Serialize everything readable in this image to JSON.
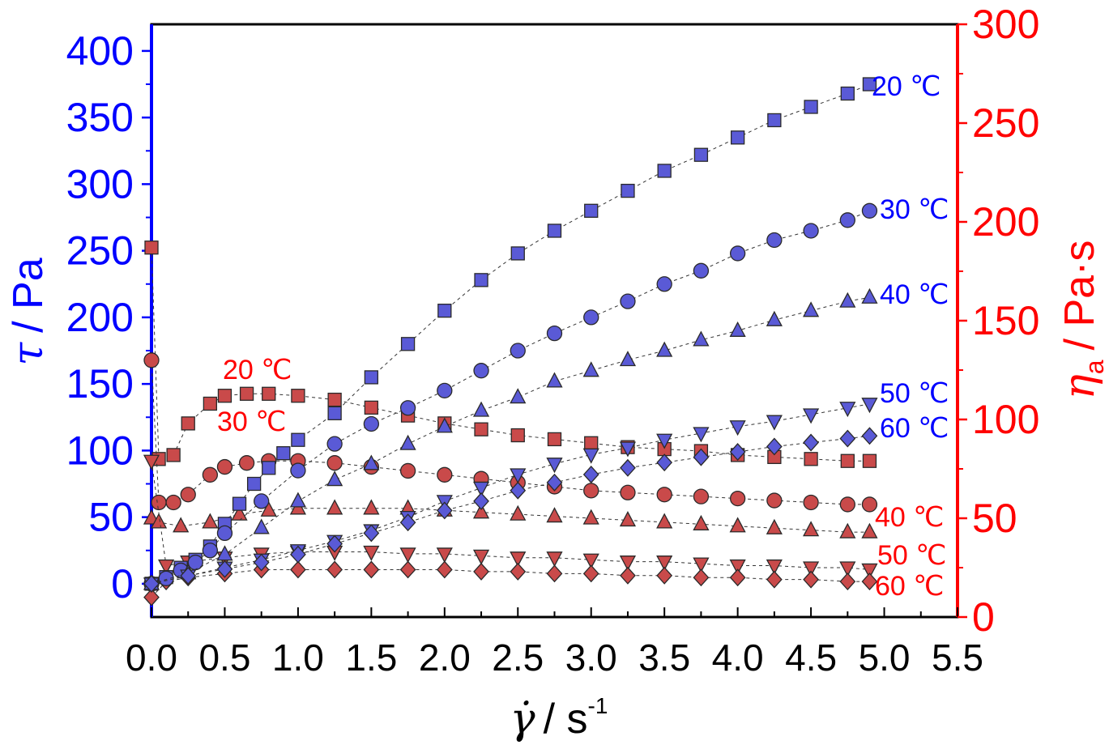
{
  "chart_data": {
    "type": "scatter",
    "x_axis": {
      "label_symbol": "γ̇",
      "label_unit": "/ s",
      "label_exp": "-1",
      "range": [
        0,
        5.5
      ],
      "ticks": [
        "0.0",
        "0.5",
        "1.0",
        "1.5",
        "2.0",
        "2.5",
        "3.0",
        "3.5",
        "4.0",
        "4.5",
        "5.0",
        "5.5"
      ]
    },
    "y_left": {
      "label_symbol": "τ",
      "label_unit": "/ Pa",
      "range": [
        -25,
        420
      ],
      "ticks": [
        "0",
        "50",
        "100",
        "150",
        "200",
        "250",
        "300",
        "350",
        "400"
      ],
      "color": "#0000ff"
    },
    "y_right": {
      "label_symbol": "η",
      "label_sub": "a",
      "label_unit": "/ Pa·s",
      "range": [
        0,
        300
      ],
      "ticks": [
        "0",
        "50",
        "100",
        "150",
        "200",
        "250",
        "300"
      ],
      "color": "#ff0000"
    },
    "colors": {
      "blue_fill": "#5a5ad6",
      "red_fill": "#c94a4a",
      "stroke": "#2a2a2a"
    },
    "shear_stress_series": [
      {
        "name": "20 ℃",
        "marker": "square",
        "points": [
          [
            0,
            0
          ],
          [
            0.1,
            5
          ],
          [
            0.2,
            12
          ],
          [
            0.3,
            18
          ],
          [
            0.4,
            28
          ],
          [
            0.5,
            45
          ],
          [
            0.6,
            60
          ],
          [
            0.7,
            75
          ],
          [
            0.8,
            87
          ],
          [
            0.9,
            98
          ],
          [
            1.0,
            108
          ],
          [
            1.25,
            128
          ],
          [
            1.5,
            155
          ],
          [
            1.75,
            180
          ],
          [
            2.0,
            205
          ],
          [
            2.25,
            228
          ],
          [
            2.5,
            248
          ],
          [
            2.75,
            265
          ],
          [
            3.0,
            280
          ],
          [
            3.25,
            295
          ],
          [
            3.5,
            310
          ],
          [
            3.75,
            322
          ],
          [
            4.0,
            335
          ],
          [
            4.25,
            348
          ],
          [
            4.5,
            358
          ],
          [
            4.75,
            368
          ],
          [
            4.9,
            375
          ]
        ]
      },
      {
        "name": "30 ℃",
        "marker": "circle",
        "points": [
          [
            0,
            0
          ],
          [
            0.1,
            4
          ],
          [
            0.2,
            10
          ],
          [
            0.3,
            16
          ],
          [
            0.4,
            25
          ],
          [
            0.5,
            38
          ],
          [
            0.75,
            62
          ],
          [
            1.0,
            85
          ],
          [
            1.25,
            105
          ],
          [
            1.5,
            120
          ],
          [
            1.75,
            132
          ],
          [
            2.0,
            145
          ],
          [
            2.25,
            160
          ],
          [
            2.5,
            175
          ],
          [
            2.75,
            188
          ],
          [
            3.0,
            200
          ],
          [
            3.25,
            212
          ],
          [
            3.5,
            225
          ],
          [
            3.75,
            235
          ],
          [
            4.0,
            248
          ],
          [
            4.25,
            258
          ],
          [
            4.5,
            265
          ],
          [
            4.75,
            273
          ],
          [
            4.9,
            280
          ]
        ]
      },
      {
        "name": "40 ℃",
        "marker": "triangle-up",
        "points": [
          [
            0,
            0
          ],
          [
            0.25,
            8
          ],
          [
            0.5,
            22
          ],
          [
            0.75,
            42
          ],
          [
            1.0,
            62
          ],
          [
            1.25,
            78
          ],
          [
            1.5,
            90
          ],
          [
            1.75,
            105
          ],
          [
            2.0,
            118
          ],
          [
            2.25,
            130
          ],
          [
            2.5,
            140
          ],
          [
            2.75,
            152
          ],
          [
            3.0,
            160
          ],
          [
            3.25,
            168
          ],
          [
            3.5,
            175
          ],
          [
            3.75,
            183
          ],
          [
            4.0,
            190
          ],
          [
            4.25,
            198
          ],
          [
            4.5,
            205
          ],
          [
            4.75,
            212
          ],
          [
            4.9,
            215
          ]
        ]
      },
      {
        "name": "50 ℃",
        "marker": "triangle-down",
        "points": [
          [
            0,
            0
          ],
          [
            0.25,
            6
          ],
          [
            0.5,
            12
          ],
          [
            0.75,
            18
          ],
          [
            1.0,
            25
          ],
          [
            1.25,
            32
          ],
          [
            1.5,
            40
          ],
          [
            1.75,
            50
          ],
          [
            2.0,
            62
          ],
          [
            2.25,
            72
          ],
          [
            2.5,
            82
          ],
          [
            2.75,
            90
          ],
          [
            3.0,
            97
          ],
          [
            3.25,
            102
          ],
          [
            3.5,
            108
          ],
          [
            3.75,
            113
          ],
          [
            4.0,
            118
          ],
          [
            4.25,
            122
          ],
          [
            4.5,
            127
          ],
          [
            4.75,
            132
          ],
          [
            4.9,
            135
          ]
        ]
      },
      {
        "name": "60 ℃",
        "marker": "diamond",
        "points": [
          [
            0,
            0
          ],
          [
            0.25,
            6
          ],
          [
            0.5,
            11
          ],
          [
            0.75,
            16
          ],
          [
            1.0,
            22
          ],
          [
            1.25,
            30
          ],
          [
            1.5,
            38
          ],
          [
            1.75,
            46
          ],
          [
            2.0,
            55
          ],
          [
            2.25,
            62
          ],
          [
            2.5,
            70
          ],
          [
            2.75,
            76
          ],
          [
            3.0,
            82
          ],
          [
            3.25,
            87
          ],
          [
            3.5,
            91
          ],
          [
            3.75,
            95
          ],
          [
            4.0,
            99
          ],
          [
            4.25,
            103
          ],
          [
            4.5,
            106
          ],
          [
            4.75,
            109
          ],
          [
            4.9,
            111
          ]
        ]
      }
    ],
    "viscosity_series": [
      {
        "name": "20 ℃",
        "marker": "square",
        "points": [
          [
            0,
            187
          ],
          [
            0.05,
            80
          ],
          [
            0.15,
            82
          ],
          [
            0.25,
            98
          ],
          [
            0.4,
            108
          ],
          [
            0.5,
            112
          ],
          [
            0.65,
            113
          ],
          [
            0.8,
            113
          ],
          [
            1.0,
            112
          ],
          [
            1.25,
            110
          ],
          [
            1.5,
            106
          ],
          [
            1.75,
            102
          ],
          [
            2.0,
            98
          ],
          [
            2.25,
            95
          ],
          [
            2.5,
            92
          ],
          [
            2.75,
            90
          ],
          [
            3.0,
            88
          ],
          [
            3.25,
            86
          ],
          [
            3.5,
            85
          ],
          [
            3.75,
            84
          ],
          [
            4.0,
            82
          ],
          [
            4.25,
            81
          ],
          [
            4.5,
            80
          ],
          [
            4.75,
            79
          ],
          [
            4.9,
            79
          ]
        ]
      },
      {
        "name": "30 ℃",
        "marker": "circle",
        "points": [
          [
            0,
            130
          ],
          [
            0.05,
            58
          ],
          [
            0.15,
            58
          ],
          [
            0.25,
            62
          ],
          [
            0.4,
            72
          ],
          [
            0.5,
            76
          ],
          [
            0.65,
            78
          ],
          [
            0.8,
            79
          ],
          [
            1.0,
            79
          ],
          [
            1.25,
            78
          ],
          [
            1.5,
            76
          ],
          [
            1.75,
            74
          ],
          [
            2.0,
            72
          ],
          [
            2.25,
            70
          ],
          [
            2.5,
            68
          ],
          [
            2.75,
            66
          ],
          [
            3.0,
            64
          ],
          [
            3.25,
            63
          ],
          [
            3.5,
            62
          ],
          [
            3.75,
            61
          ],
          [
            4.0,
            60
          ],
          [
            4.25,
            59
          ],
          [
            4.5,
            58
          ],
          [
            4.75,
            57
          ],
          [
            4.9,
            57
          ]
        ]
      },
      {
        "name": "40 ℃",
        "marker": "triangle-up",
        "points": [
          [
            0,
            50
          ],
          [
            0.05,
            48
          ],
          [
            0.2,
            46
          ],
          [
            0.4,
            48
          ],
          [
            0.6,
            52
          ],
          [
            0.8,
            54
          ],
          [
            1.0,
            55
          ],
          [
            1.25,
            55
          ],
          [
            1.5,
            55
          ],
          [
            1.75,
            55
          ],
          [
            2.0,
            54
          ],
          [
            2.25,
            53
          ],
          [
            2.5,
            52
          ],
          [
            2.75,
            51
          ],
          [
            3.0,
            50
          ],
          [
            3.25,
            49
          ],
          [
            3.5,
            48
          ],
          [
            3.75,
            47
          ],
          [
            4.0,
            46
          ],
          [
            4.25,
            45
          ],
          [
            4.5,
            44
          ],
          [
            4.75,
            43
          ],
          [
            4.9,
            43
          ]
        ]
      },
      {
        "name": "50 ℃",
        "marker": "triangle-down",
        "points": [
          [
            0,
            79
          ],
          [
            0.1,
            26
          ],
          [
            0.25,
            28
          ],
          [
            0.5,
            30
          ],
          [
            0.75,
            32
          ],
          [
            1.0,
            33
          ],
          [
            1.25,
            33
          ],
          [
            1.5,
            33
          ],
          [
            1.75,
            32
          ],
          [
            2.0,
            32
          ],
          [
            2.25,
            31
          ],
          [
            2.5,
            30
          ],
          [
            2.75,
            30
          ],
          [
            3.0,
            29
          ],
          [
            3.25,
            28
          ],
          [
            3.5,
            28
          ],
          [
            3.75,
            27
          ],
          [
            4.0,
            26
          ],
          [
            4.25,
            26
          ],
          [
            4.5,
            25
          ],
          [
            4.75,
            25
          ],
          [
            4.9,
            24
          ]
        ]
      },
      {
        "name": "60 ℃",
        "marker": "diamond",
        "points": [
          [
            0,
            10
          ],
          [
            0.1,
            18
          ],
          [
            0.25,
            20
          ],
          [
            0.5,
            22
          ],
          [
            0.75,
            24
          ],
          [
            1.0,
            24
          ],
          [
            1.25,
            24
          ],
          [
            1.5,
            24
          ],
          [
            1.75,
            24
          ],
          [
            2.0,
            24
          ],
          [
            2.25,
            23
          ],
          [
            2.5,
            23
          ],
          [
            2.75,
            22
          ],
          [
            3.0,
            22
          ],
          [
            3.25,
            21
          ],
          [
            3.5,
            21
          ],
          [
            3.75,
            20
          ],
          [
            4.0,
            20
          ],
          [
            4.25,
            19
          ],
          [
            4.5,
            19
          ],
          [
            4.75,
            18
          ],
          [
            4.9,
            18
          ]
        ]
      }
    ]
  }
}
